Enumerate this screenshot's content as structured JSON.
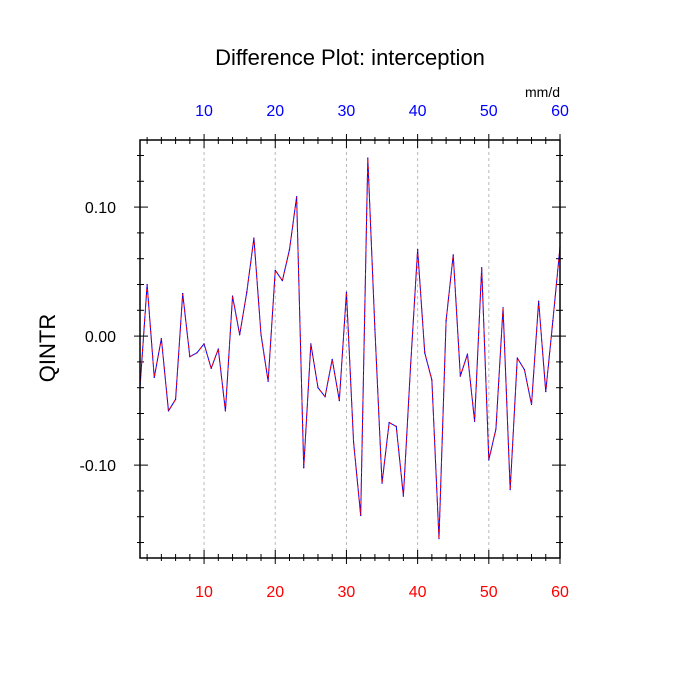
{
  "chart_data": {
    "type": "line",
    "title": "Difference Plot: interception",
    "ylabel": "QINTR",
    "x_top_unit": "mm/d",
    "xlim": [
      1,
      60
    ],
    "ylim": [
      -0.172,
      0.152
    ],
    "grid": "vertical dashed",
    "x_ticks": [
      10,
      20,
      30,
      40,
      50,
      60
    ],
    "x_tick_labels": [
      "10",
      "20",
      "30",
      "40",
      "50",
      "60"
    ],
    "y_ticks": [
      -0.1,
      0.0,
      0.1
    ],
    "y_tick_labels": [
      "-0.10",
      "0.00",
      "0.10"
    ],
    "x_tick_color_bottom": "#ff0000",
    "x_tick_color_top": "#0000ff",
    "series": [
      {
        "line_colors": [
          "#0000ff",
          "#ff0000"
        ],
        "style": "dashed overlay",
        "x": [
          1,
          2,
          3,
          4,
          5,
          6,
          7,
          8,
          9,
          10,
          11,
          12,
          13,
          14,
          15,
          16,
          17,
          18,
          19,
          20,
          21,
          22,
          23,
          24,
          25,
          26,
          27,
          28,
          29,
          30,
          31,
          32,
          33,
          34,
          35,
          36,
          37,
          38,
          39,
          40,
          41,
          42,
          43,
          44,
          45,
          46,
          47,
          48,
          49,
          50,
          51,
          52,
          53,
          54,
          55,
          56,
          57,
          58,
          59,
          60
        ],
        "values": [
          -0.04,
          0.04,
          -0.032,
          -0.002,
          -0.058,
          -0.049,
          0.033,
          -0.016,
          -0.013,
          -0.006,
          -0.025,
          -0.01,
          -0.058,
          0.031,
          0.001,
          0.034,
          0.076,
          0.001,
          -0.035,
          0.051,
          0.043,
          0.067,
          0.108,
          -0.102,
          -0.006,
          -0.04,
          -0.047,
          -0.018,
          -0.05,
          0.034,
          -0.082,
          -0.139,
          0.138,
          0.005,
          -0.114,
          -0.067,
          -0.07,
          -0.124,
          -0.024,
          0.067,
          -0.013,
          -0.034,
          -0.157,
          0.012,
          0.063,
          -0.031,
          -0.014,
          -0.066,
          0.053,
          -0.096,
          -0.072,
          0.022,
          -0.119,
          -0.017,
          -0.026,
          -0.053,
          0.027,
          -0.043,
          0.012,
          0.069
        ]
      }
    ]
  }
}
